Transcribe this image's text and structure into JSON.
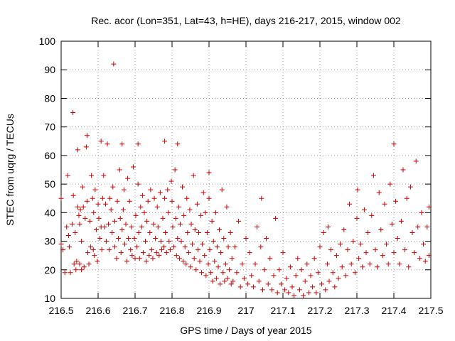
{
  "chart_data": {
    "type": "scatter",
    "title": "Rec. acor (Lon=351, Lat=43, h=HE), days 216-217, 2015, window 002",
    "xlabel": "GPS time / Days of year 2015",
    "ylabel": "STEC from uqrg / TECUs",
    "xlim": [
      216.5,
      217.5
    ],
    "ylim": [
      10,
      100
    ],
    "x_ticks": [
      216.5,
      216.6,
      216.7,
      216.8,
      216.9,
      217.0,
      217.1,
      217.2,
      217.3,
      217.4,
      217.5
    ],
    "x_tick_labels": [
      "216.5",
      "216.6",
      "216.7",
      "216.8",
      "216.9",
      "217",
      "217.1",
      "217.2",
      "217.3",
      "217.4",
      "217.5"
    ],
    "y_ticks": [
      10,
      20,
      30,
      40,
      50,
      60,
      70,
      80,
      90,
      100
    ],
    "y_tick_labels": [
      "10",
      "20",
      "30",
      "40",
      "50",
      "60",
      "70",
      "80",
      "90",
      "100"
    ],
    "grid": true,
    "marker": "+",
    "marker_color": "#cc0000",
    "series": [
      {
        "name": "STEC",
        "points": [
          [
            216.5,
            45
          ],
          [
            216.5,
            29
          ],
          [
            216.505,
            27
          ],
          [
            216.51,
            19
          ],
          [
            216.515,
            35
          ],
          [
            216.518,
            53
          ],
          [
            216.52,
            32
          ],
          [
            216.522,
            28
          ],
          [
            216.525,
            19
          ],
          [
            216.53,
            36
          ],
          [
            216.532,
            75
          ],
          [
            216.533,
            46
          ],
          [
            216.535,
            22
          ],
          [
            216.538,
            33
          ],
          [
            216.54,
            20
          ],
          [
            216.542,
            23
          ],
          [
            216.545,
            62
          ],
          [
            216.545,
            42
          ],
          [
            216.548,
            39
          ],
          [
            216.55,
            36
          ],
          [
            216.55,
            22
          ],
          [
            216.552,
            41
          ],
          [
            216.555,
            30
          ],
          [
            216.555,
            20
          ],
          [
            216.558,
            49
          ],
          [
            216.56,
            42
          ],
          [
            216.562,
            21
          ],
          [
            216.565,
            38
          ],
          [
            216.568,
            63
          ],
          [
            216.57,
            67
          ],
          [
            216.57,
            44
          ],
          [
            216.572,
            26
          ],
          [
            216.575,
            22
          ],
          [
            216.578,
            37
          ],
          [
            216.58,
            28
          ],
          [
            216.582,
            53
          ],
          [
            216.585,
            45
          ],
          [
            216.587,
            27
          ],
          [
            216.588,
            40
          ],
          [
            216.59,
            25
          ],
          [
            216.592,
            48
          ],
          [
            216.595,
            34
          ],
          [
            216.598,
            23
          ],
          [
            216.6,
            43
          ],
          [
            216.602,
            38
          ],
          [
            216.605,
            31
          ],
          [
            216.608,
            65
          ],
          [
            216.608,
            35
          ],
          [
            216.61,
            27
          ],
          [
            216.612,
            45
          ],
          [
            216.615,
            53
          ],
          [
            216.618,
            35
          ],
          [
            216.62,
            43
          ],
          [
            216.622,
            30
          ],
          [
            216.625,
            64
          ],
          [
            216.628,
            36
          ],
          [
            216.63,
            27
          ],
          [
            216.632,
            45
          ],
          [
            216.635,
            41
          ],
          [
            216.638,
            33
          ],
          [
            216.64,
            49
          ],
          [
            216.642,
            92
          ],
          [
            216.645,
            37
          ],
          [
            216.645,
            28
          ],
          [
            216.65,
            24
          ],
          [
            216.652,
            44
          ],
          [
            216.655,
            31
          ],
          [
            216.658,
            55
          ],
          [
            216.66,
            38
          ],
          [
            216.662,
            26
          ],
          [
            216.665,
            64
          ],
          [
            216.665,
            34
          ],
          [
            216.668,
            41
          ],
          [
            216.67,
            48
          ],
          [
            216.672,
            29
          ],
          [
            216.675,
            36
          ],
          [
            216.678,
            23
          ],
          [
            216.68,
            52
          ],
          [
            216.682,
            31
          ],
          [
            216.685,
            44
          ],
          [
            216.688,
            27
          ],
          [
            216.69,
            35
          ],
          [
            216.692,
            25
          ],
          [
            216.695,
            56
          ],
          [
            216.698,
            31
          ],
          [
            216.7,
            24
          ],
          [
            216.702,
            39
          ],
          [
            216.705,
            28
          ],
          [
            216.708,
            50
          ],
          [
            216.708,
            64
          ],
          [
            216.71,
            33
          ],
          [
            216.712,
            24
          ],
          [
            216.715,
            42
          ],
          [
            216.718,
            35
          ],
          [
            216.72,
            46
          ],
          [
            216.722,
            26
          ],
          [
            216.725,
            40
          ],
          [
            216.728,
            30
          ],
          [
            216.73,
            23
          ],
          [
            216.732,
            37
          ],
          [
            216.735,
            44
          ],
          [
            216.738,
            25
          ],
          [
            216.74,
            33
          ],
          [
            216.742,
            48
          ],
          [
            216.745,
            27
          ],
          [
            216.748,
            24
          ],
          [
            216.75,
            36
          ],
          [
            216.752,
            45
          ],
          [
            216.755,
            31
          ],
          [
            216.758,
            26
          ],
          [
            216.76,
            42
          ],
          [
            216.762,
            35
          ],
          [
            216.765,
            25
          ],
          [
            216.768,
            47
          ],
          [
            216.77,
            30
          ],
          [
            216.772,
            27
          ],
          [
            216.775,
            38
          ],
          [
            216.778,
            28
          ],
          [
            216.78,
            65
          ],
          [
            216.78,
            45
          ],
          [
            216.782,
            33
          ],
          [
            216.785,
            26
          ],
          [
            216.788,
            48
          ],
          [
            216.79,
            40
          ],
          [
            216.792,
            30
          ],
          [
            216.795,
            27
          ],
          [
            216.798,
            51
          ],
          [
            216.8,
            44
          ],
          [
            216.802,
            35
          ],
          [
            216.805,
            28
          ],
          [
            216.808,
            55
          ],
          [
            216.81,
            38
          ],
          [
            216.812,
            25
          ],
          [
            216.815,
            64
          ],
          [
            216.815,
            31
          ],
          [
            216.818,
            42
          ],
          [
            216.82,
            24
          ],
          [
            216.822,
            36
          ],
          [
            216.825,
            30
          ],
          [
            216.828,
            49
          ],
          [
            216.83,
            23
          ],
          [
            216.832,
            39
          ],
          [
            216.835,
            28
          ],
          [
            216.838,
            22
          ],
          [
            216.84,
            45
          ],
          [
            216.842,
            33
          ],
          [
            216.845,
            26
          ],
          [
            216.848,
            41
          ],
          [
            216.85,
            21
          ],
          [
            216.852,
            36
          ],
          [
            216.855,
            29
          ],
          [
            216.858,
            53
          ],
          [
            216.86,
            24
          ],
          [
            216.862,
            34
          ],
          [
            216.865,
            20
          ],
          [
            216.868,
            43
          ],
          [
            216.87,
            27
          ],
          [
            216.872,
            33
          ],
          [
            216.875,
            23
          ],
          [
            216.878,
            39
          ],
          [
            216.88,
            19
          ],
          [
            216.882,
            29
          ],
          [
            216.885,
            47
          ],
          [
            216.888,
            25
          ],
          [
            216.89,
            40
          ],
          [
            216.892,
            18
          ],
          [
            216.895,
            33
          ],
          [
            216.898,
            22
          ],
          [
            216.9,
            54
          ],
          [
            216.9,
            45
          ],
          [
            216.902,
            27
          ],
          [
            216.905,
            19
          ],
          [
            216.908,
            37
          ],
          [
            216.91,
            16
          ],
          [
            216.912,
            30
          ],
          [
            216.915,
            23
          ],
          [
            216.918,
            40
          ],
          [
            216.92,
            17
          ],
          [
            216.922,
            28
          ],
          [
            216.925,
            21
          ],
          [
            216.928,
            34
          ],
          [
            216.93,
            15
          ],
          [
            216.932,
            26
          ],
          [
            216.935,
            48
          ],
          [
            216.938,
            19
          ],
          [
            216.94,
            31
          ],
          [
            216.942,
            16
          ],
          [
            216.945,
            22
          ],
          [
            216.948,
            42
          ],
          [
            216.95,
            17
          ],
          [
            216.952,
            28
          ],
          [
            216.955,
            20
          ],
          [
            216.958,
            33
          ],
          [
            216.96,
            15
          ],
          [
            216.962,
            24
          ],
          [
            216.965,
            16
          ],
          [
            216.97,
            28
          ],
          [
            216.975,
            19
          ],
          [
            216.98,
            37
          ],
          [
            216.985,
            14
          ],
          [
            216.99,
            22
          ],
          [
            216.995,
            17
          ],
          [
            217.0,
            31
          ],
          [
            217.005,
            15
          ],
          [
            217.01,
            26
          ],
          [
            217.015,
            18
          ],
          [
            217.02,
            14
          ],
          [
            217.025,
            22
          ],
          [
            217.03,
            35
          ],
          [
            217.035,
            16
          ],
          [
            217.04,
            28
          ],
          [
            217.042,
            45
          ],
          [
            217.045,
            13
          ],
          [
            217.05,
            20
          ],
          [
            217.055,
            31
          ],
          [
            217.06,
            15
          ],
          [
            217.065,
            24
          ],
          [
            217.07,
            13
          ],
          [
            217.075,
            18
          ],
          [
            217.08,
            38
          ],
          [
            217.085,
            12
          ],
          [
            217.09,
            20
          ],
          [
            217.095,
            15
          ],
          [
            217.1,
            26
          ],
          [
            217.105,
            13
          ],
          [
            217.11,
            17
          ],
          [
            217.115,
            12
          ],
          [
            217.12,
            21
          ],
          [
            217.125,
            14
          ],
          [
            217.13,
            11
          ],
          [
            217.135,
            18
          ],
          [
            217.14,
            24
          ],
          [
            217.145,
            13
          ],
          [
            217.15,
            20
          ],
          [
            217.155,
            11
          ],
          [
            217.16,
            16
          ],
          [
            217.165,
            22
          ],
          [
            217.17,
            12
          ],
          [
            217.175,
            18
          ],
          [
            217.18,
            14
          ],
          [
            217.185,
            24
          ],
          [
            217.19,
            12
          ],
          [
            217.195,
            19
          ],
          [
            217.2,
            28
          ],
          [
            217.205,
            15
          ],
          [
            217.21,
            33
          ],
          [
            217.215,
            13
          ],
          [
            217.22,
            22
          ],
          [
            217.222,
            35
          ],
          [
            217.225,
            16
          ],
          [
            217.23,
            27
          ],
          [
            217.235,
            19
          ],
          [
            217.24,
            14
          ],
          [
            217.245,
            25
          ],
          [
            217.25,
            17
          ],
          [
            217.255,
            29
          ],
          [
            217.26,
            21
          ],
          [
            217.265,
            34
          ],
          [
            217.27,
            18
          ],
          [
            217.275,
            27
          ],
          [
            217.28,
            43
          ],
          [
            217.285,
            22
          ],
          [
            217.29,
            30
          ],
          [
            217.295,
            19
          ],
          [
            217.3,
            38
          ],
          [
            217.302,
            48
          ],
          [
            217.305,
            24
          ],
          [
            217.31,
            29
          ],
          [
            217.315,
            21
          ],
          [
            217.32,
            41
          ],
          [
            217.325,
            26
          ],
          [
            217.33,
            33
          ],
          [
            217.335,
            22
          ],
          [
            217.34,
            39
          ],
          [
            217.345,
            53
          ],
          [
            217.35,
            27
          ],
          [
            217.355,
            21
          ],
          [
            217.36,
            47
          ],
          [
            217.365,
            34
          ],
          [
            217.37,
            25
          ],
          [
            217.375,
            43
          ],
          [
            217.38,
            29
          ],
          [
            217.385,
            22
          ],
          [
            217.39,
            50
          ],
          [
            217.395,
            36
          ],
          [
            217.4,
            64
          ],
          [
            217.4,
            26
          ],
          [
            217.405,
            44
          ],
          [
            217.41,
            31
          ],
          [
            217.415,
            22
          ],
          [
            217.42,
            37
          ],
          [
            217.425,
            55
          ],
          [
            217.43,
            27
          ],
          [
            217.435,
            45
          ],
          [
            217.44,
            21
          ],
          [
            217.445,
            49
          ],
          [
            217.45,
            33
          ],
          [
            217.455,
            26
          ],
          [
            217.46,
            58
          ],
          [
            217.465,
            35
          ],
          [
            217.47,
            24
          ],
          [
            217.475,
            40
          ],
          [
            217.48,
            29
          ],
          [
            217.485,
            23
          ],
          [
            217.49,
            35
          ],
          [
            217.495,
            42
          ],
          [
            217.495,
            25
          ]
        ]
      }
    ]
  }
}
